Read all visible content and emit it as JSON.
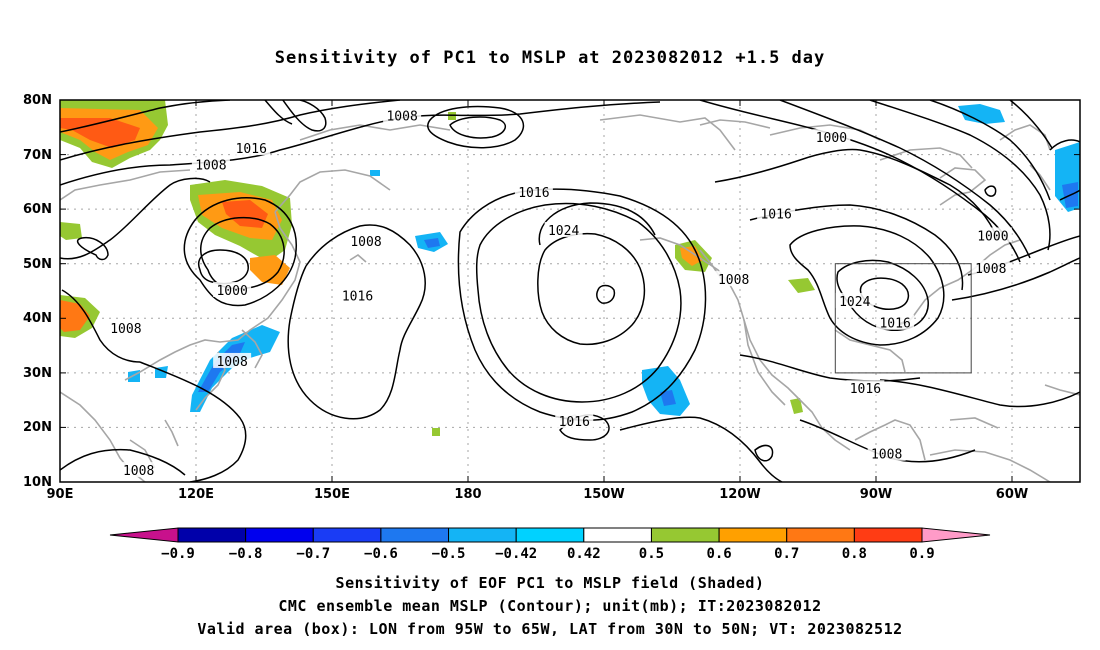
{
  "title": "Sensitivity of PC1 to MSLP at 2023082012 +1.5 day",
  "lat_labels": [
    "80N",
    "70N",
    "60N",
    "50N",
    "40N",
    "30N",
    "20N",
    "10N"
  ],
  "lon_labels": [
    "90E",
    "120E",
    "150E",
    "180",
    "150W",
    "120W",
    "90W",
    "60W"
  ],
  "contour_labels": [
    {
      "text": "1008",
      "lon": 170.5,
      "lat": 77
    },
    {
      "text": "1016",
      "lon": 135,
      "lat": 71
    },
    {
      "text": "1008",
      "lon": 125.5,
      "lat": 68
    },
    {
      "text": "1016",
      "lon": 201.5,
      "lat": 63
    },
    {
      "text": "1000",
      "lon": 271.5,
      "lat": 73
    },
    {
      "text": "1016",
      "lon": 258.5,
      "lat": 59
    },
    {
      "text": "1024",
      "lon": 208.5,
      "lat": 56
    },
    {
      "text": "1008",
      "lon": 162,
      "lat": 54
    },
    {
      "text": "1000",
      "lon": 309.5,
      "lat": 55
    },
    {
      "text": "1008",
      "lon": 309,
      "lat": 49
    },
    {
      "text": "1008",
      "lon": 248.5,
      "lat": 47
    },
    {
      "text": "1000",
      "lon": 130.5,
      "lat": 45
    },
    {
      "text": "1016",
      "lon": 160,
      "lat": 44
    },
    {
      "text": "1024",
      "lon": 277,
      "lat": 43
    },
    {
      "text": "1016",
      "lon": 286.5,
      "lat": 39
    },
    {
      "text": "1008",
      "lon": 105.5,
      "lat": 38
    },
    {
      "text": "1008",
      "lon": 130.5,
      "lat": 32
    },
    {
      "text": "1016",
      "lon": 279.5,
      "lat": 27
    },
    {
      "text": "1016",
      "lon": 211,
      "lat": 21
    },
    {
      "text": "1008",
      "lon": 284.5,
      "lat": 15
    },
    {
      "text": "1008",
      "lon": 108.5,
      "lat": 12
    }
  ],
  "shade_levels": [
    {
      "label": "−0.9",
      "color": "#0000aa"
    },
    {
      "label": "−0.8",
      "color": "#0000ee"
    },
    {
      "label": "−0.7",
      "color": "#1a3cf5"
    },
    {
      "label": "−0.6",
      "color": "#1e78f0"
    },
    {
      "label": "−0.5",
      "color": "#14b4f5"
    },
    {
      "label": "−0.42",
      "color": "#00d2ff"
    },
    {
      "label": "0.42",
      "color": "#ffffff"
    },
    {
      "label": "0.5",
      "color": "#96c832"
    },
    {
      "label": "0.6",
      "color": "#ffa000"
    },
    {
      "label": "0.7",
      "color": "#ff7814"
    },
    {
      "label": "0.8",
      "color": "#ff3c14"
    },
    {
      "label": "0.9",
      "color": "#ff0000"
    }
  ],
  "colorbar_ends": {
    "low": "#c8118c",
    "high": "#ff9bc8"
  },
  "valid_box": {
    "lon_min": -95,
    "lon_max": -65,
    "lat_min": 30,
    "lat_max": 50
  },
  "captions": {
    "line1": "Sensitivity of EOF PC1 to MSLP field (Shaded)",
    "line2": "CMC ensemble mean MSLP (Contour); unit(mb); IT:2023082012",
    "line3": "Valid area (box): LON from 95W to 65W, LAT from 30N to 50N; VT: 2023082512"
  }
}
